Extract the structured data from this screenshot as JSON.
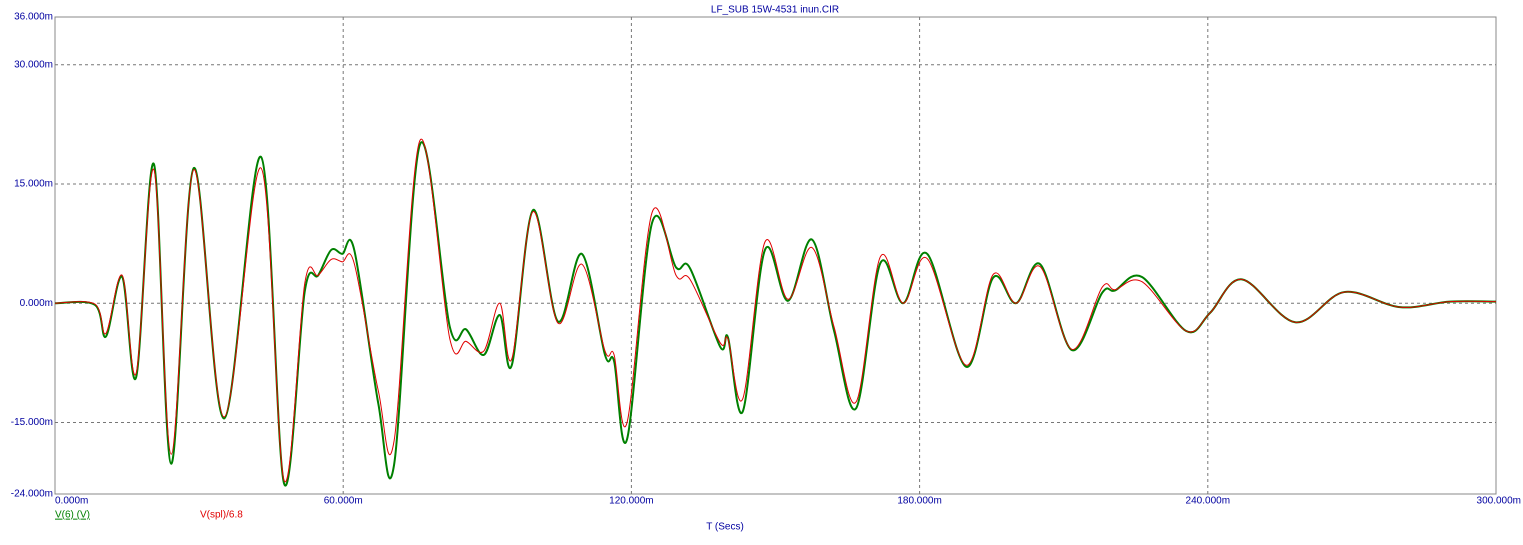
{
  "chart_data": {
    "type": "line",
    "title": "LF_SUB 15W-4531 inun.CIR",
    "x_label": "T (Secs)",
    "x": [
      0,
      0.0083,
      0.0106,
      0.014,
      0.0169,
      0.0206,
      0.0242,
      0.0289,
      0.0352,
      0.0429,
      0.0477,
      0.052,
      0.0548,
      0.0575,
      0.0598,
      0.0623,
      0.0673,
      0.0706,
      0.076,
      0.0822,
      0.0856,
      0.0893,
      0.0926,
      0.0951,
      0.0995,
      0.1047,
      0.1097,
      0.1145,
      0.1164,
      0.1191,
      0.1243,
      0.1293,
      0.1322,
      0.1385,
      0.1401,
      0.1432,
      0.1478,
      0.1526,
      0.1576,
      0.1622,
      0.1668,
      0.1718,
      0.1766,
      0.1816,
      0.1897,
      0.1953,
      0.2001,
      0.2051,
      0.2117,
      0.218,
      0.2207,
      0.2263,
      0.2355,
      0.2405,
      0.2471,
      0.2582,
      0.2684,
      0.28,
      0.2904,
      0.3
    ],
    "series": [
      {
        "name": "V(6) (V)",
        "color": "#008000",
        "values": [
          0,
          -0.0002,
          -0.0042,
          0.0033,
          -0.0093,
          0.0175,
          -0.0202,
          0.017,
          -0.0145,
          0.0184,
          -0.0227,
          0.0015,
          0.0035,
          0.0067,
          0.0062,
          0.0067,
          -0.0126,
          -0.0203,
          0.02,
          -0.003,
          -0.0033,
          -0.0065,
          -0.0015,
          -0.0078,
          0.0117,
          -0.0023,
          0.0062,
          -0.0065,
          -0.0073,
          -0.0171,
          0.0101,
          0.0045,
          0.0044,
          -0.0055,
          -0.0043,
          -0.0136,
          0.0067,
          0.0003,
          0.008,
          -0.0035,
          -0.0132,
          0.005,
          0,
          0.0062,
          -0.008,
          0.0032,
          0,
          0.0049,
          -0.0059,
          0.0013,
          0.0016,
          0.0033,
          -0.0035,
          -0.0012,
          0.003,
          -0.0024,
          0.0014,
          -0.0005,
          0.0002,
          0.0002
        ]
      },
      {
        "name": "V(spl)/6.8",
        "color": "#e00000",
        "values": [
          0,
          -0.0001,
          -0.0038,
          0.0035,
          -0.0088,
          0.0168,
          -0.019,
          0.0168,
          -0.0143,
          0.017,
          -0.0223,
          0.0025,
          0.0035,
          0.0055,
          0.0052,
          0.005,
          -0.011,
          -0.0173,
          0.0205,
          -0.0045,
          -0.0048,
          -0.006,
          0,
          -0.007,
          0.0115,
          -0.0025,
          0.0049,
          -0.006,
          -0.0065,
          -0.015,
          0.0114,
          0.0035,
          0.003,
          -0.005,
          -0.0045,
          -0.012,
          0.0077,
          0.0005,
          0.007,
          -0.003,
          -0.0124,
          0.0058,
          0,
          0.0056,
          -0.0078,
          0.0036,
          0,
          0.0046,
          -0.0058,
          0.002,
          0.0017,
          0.0027,
          -0.0035,
          -0.0012,
          0.003,
          -0.0024,
          0.0014,
          -0.0005,
          0.0002,
          0.0002
        ]
      }
    ],
    "xlim": [
      0,
      0.3
    ],
    "xticks": [
      {
        "value": 0,
        "label": "0.000m"
      },
      {
        "value": 0.06,
        "label": "60.000m"
      },
      {
        "value": 0.12,
        "label": "120.000m"
      },
      {
        "value": 0.18,
        "label": "180.000m"
      },
      {
        "value": 0.24,
        "label": "240.000m"
      },
      {
        "value": 0.3,
        "label": "300.000m"
      }
    ],
    "ylim": [
      -0.024,
      0.036
    ],
    "yticks": [
      {
        "value": -0.024,
        "label": "-24.000m"
      },
      {
        "value": -0.015,
        "label": "-15.000m"
      },
      {
        "value": 0,
        "label": "0.000m"
      },
      {
        "value": 0.015,
        "label": "15.000m"
      },
      {
        "value": 0.03,
        "label": "30.000m"
      },
      {
        "value": 0.036,
        "label": "36.000m"
      }
    ],
    "grid": true
  }
}
